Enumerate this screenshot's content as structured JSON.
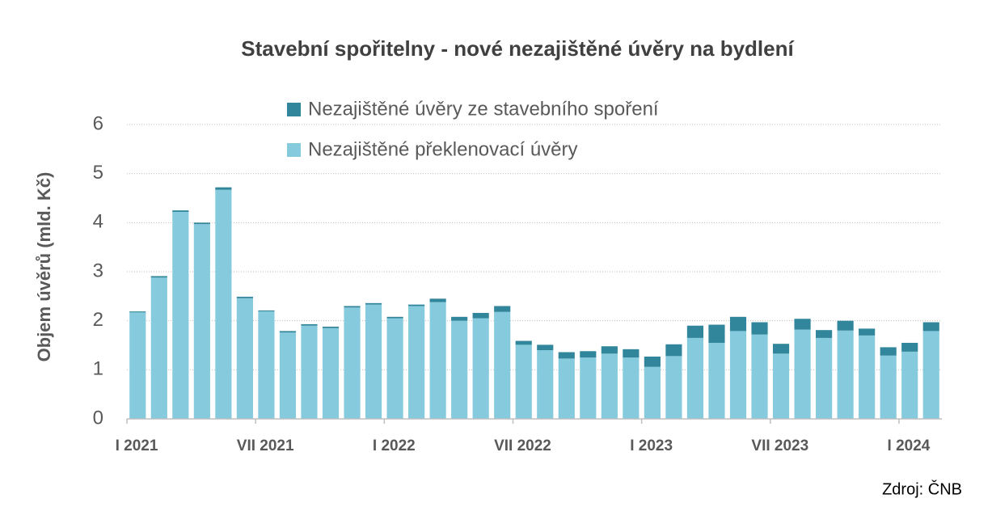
{
  "chart_data": {
    "type": "stacked_bar",
    "title": "Stavební spořitelny - nové nezajištěné úvěry na bydlení",
    "y_label": "Objem úvěrů (mld. Kč)",
    "source": "Zdroj: ČNB",
    "categories": [
      "I 2021",
      null,
      null,
      null,
      null,
      null,
      "VII 2021",
      null,
      null,
      null,
      null,
      null,
      "I 2022",
      null,
      null,
      null,
      null,
      null,
      "VII 2022",
      null,
      null,
      null,
      null,
      null,
      "I 2023",
      null,
      null,
      null,
      null,
      null,
      "VII 2023",
      null,
      null,
      null,
      null,
      null,
      "I 2024",
      null
    ],
    "series": [
      {
        "name": "Nezajištěné překlenovací úvěry",
        "color": "#86cadd",
        "values": [
          2.17,
          2.88,
          4.22,
          3.97,
          4.67,
          2.46,
          2.19,
          1.76,
          1.9,
          1.85,
          2.27,
          2.33,
          2.05,
          2.3,
          2.38,
          2.0,
          2.05,
          2.18,
          1.51,
          1.4,
          1.23,
          1.25,
          1.33,
          1.25,
          1.06,
          1.28,
          1.65,
          1.55,
          1.79,
          1.72,
          1.33,
          1.82,
          1.65,
          1.8,
          1.7,
          1.29,
          1.37,
          1.79
        ]
      },
      {
        "name": "Nezajištěné úvěry ze stavebního spoření",
        "color": "#31869b",
        "values": [
          0.02,
          0.03,
          0.03,
          0.03,
          0.05,
          0.03,
          0.02,
          0.03,
          0.03,
          0.03,
          0.03,
          0.03,
          0.03,
          0.03,
          0.07,
          0.08,
          0.11,
          0.12,
          0.08,
          0.11,
          0.13,
          0.13,
          0.15,
          0.17,
          0.21,
          0.24,
          0.25,
          0.37,
          0.29,
          0.25,
          0.2,
          0.22,
          0.16,
          0.2,
          0.14,
          0.17,
          0.18,
          0.18
        ]
      }
    ],
    "ylim": [
      0,
      6
    ],
    "yticks": [
      0,
      1,
      2,
      3,
      4,
      5,
      6
    ],
    "grid": true
  }
}
